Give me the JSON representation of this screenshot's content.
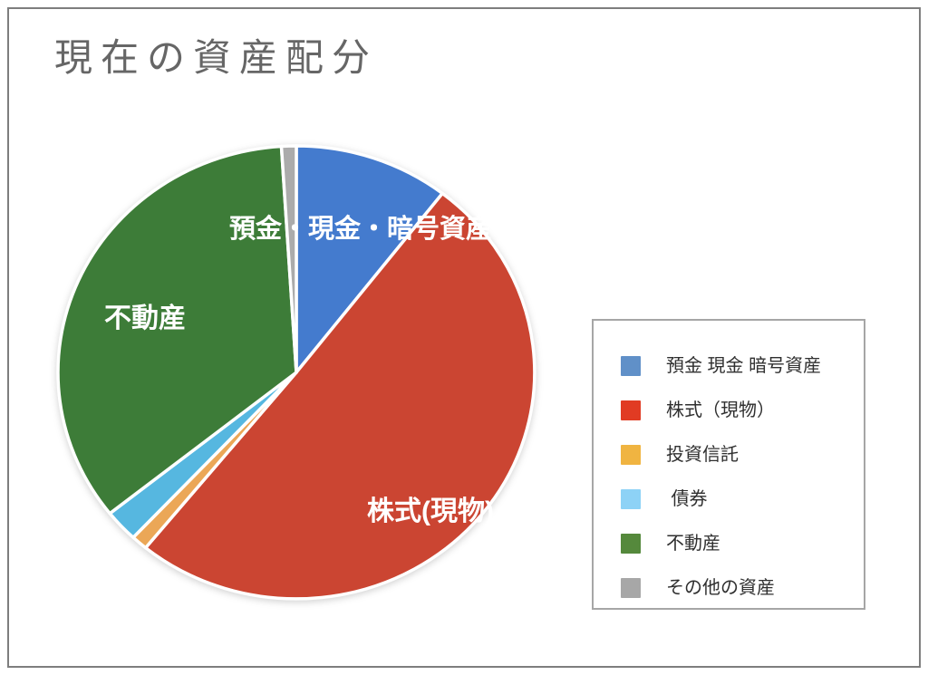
{
  "page": {
    "title": "現在の資産配分"
  },
  "chart_data": {
    "type": "pie",
    "title": "現在の資産配分",
    "categories": [
      "預金 現金 暗号資産",
      "株式（現物）",
      "投資信託",
      "債券",
      "不動産",
      "その他の資産"
    ],
    "values": [
      10.5,
      50.4,
      1.1,
      2.3,
      34.7,
      1.0
    ],
    "colors": [
      "#447bce",
      "#cb4532",
      "#eba757",
      "#56b7e0",
      "#3d7c38",
      "#ababab"
    ],
    "start_angle_deg": 0,
    "direction": "clockwise",
    "legend_position": "right",
    "on_slice_labels": {
      "deposits": "預金・現金・暗号資産",
      "stocks": "株式(現物)",
      "real_estate": "不動産"
    }
  },
  "legend": {
    "border_color": "#a6a6a6",
    "items": [
      {
        "label": "預金 現金 暗号資産",
        "color": "#6090c8"
      },
      {
        "label": "株式（現物）",
        "color": "#e13b23"
      },
      {
        "label": "投資信託",
        "color": "#f0b441"
      },
      {
        "label": " 債券",
        "color": "#8dd2f6"
      },
      {
        "label": "不動産",
        "color": "#55893c"
      },
      {
        "label": "その他の資産",
        "color": "#a7a7a7"
      }
    ]
  }
}
